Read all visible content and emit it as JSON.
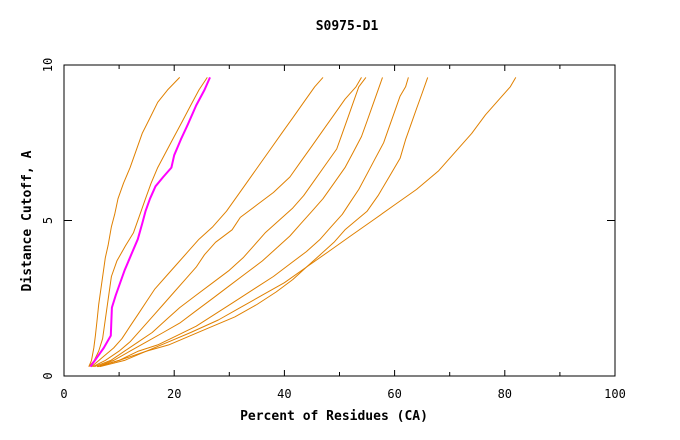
{
  "colors": {
    "background": "#ffffff",
    "axis": "#000000",
    "series_default": "#e08000",
    "series_highlight": "#ff00ff"
  },
  "chart_data": {
    "type": "line",
    "title": "S0975-D1",
    "xlabel": "Percent of Residues (CA)",
    "ylabel": "Distance Cutoff, A",
    "xlim": [
      0,
      100
    ],
    "ylim": [
      0,
      10
    ],
    "xticks": [
      0,
      20,
      40,
      60,
      80,
      100
    ],
    "yticks": [
      0,
      5,
      10
    ],
    "grid": false,
    "series": [
      {
        "highlight": false,
        "points": [
          [
            4.5,
            0.3
          ],
          [
            5.0,
            0.5
          ],
          [
            5.4,
            0.9
          ],
          [
            5.7,
            1.3
          ],
          [
            6.0,
            1.8
          ],
          [
            6.3,
            2.3
          ],
          [
            6.7,
            2.8
          ],
          [
            7.1,
            3.3
          ],
          [
            7.5,
            3.8
          ],
          [
            8.0,
            4.2
          ],
          [
            8.6,
            4.8
          ],
          [
            9.2,
            5.2
          ],
          [
            9.8,
            5.7
          ],
          [
            10.8,
            6.2
          ],
          [
            12.0,
            6.7
          ],
          [
            13.0,
            7.2
          ],
          [
            14.2,
            7.8
          ],
          [
            15.6,
            8.3
          ],
          [
            17.0,
            8.8
          ],
          [
            18.8,
            9.2
          ],
          [
            21.0,
            9.6
          ]
        ]
      },
      {
        "highlight": false,
        "points": [
          [
            4.5,
            0.3
          ],
          [
            5.5,
            0.5
          ],
          [
            6.3,
            0.8
          ],
          [
            7.0,
            1.2
          ],
          [
            7.4,
            1.7
          ],
          [
            7.8,
            2.2
          ],
          [
            8.2,
            2.7
          ],
          [
            8.6,
            3.2
          ],
          [
            9.6,
            3.7
          ],
          [
            11.2,
            4.2
          ],
          [
            12.6,
            4.6
          ],
          [
            13.8,
            5.2
          ],
          [
            14.8,
            5.7
          ],
          [
            15.8,
            6.2
          ],
          [
            17.0,
            6.7
          ],
          [
            18.5,
            7.2
          ],
          [
            20.0,
            7.7
          ],
          [
            21.5,
            8.2
          ],
          [
            23.0,
            8.7
          ],
          [
            24.5,
            9.2
          ],
          [
            26.0,
            9.6
          ]
        ]
      },
      {
        "highlight": true,
        "points": [
          [
            4.8,
            0.3
          ],
          [
            6.0,
            0.6
          ],
          [
            7.2,
            0.9
          ],
          [
            8.5,
            1.3
          ],
          [
            8.6,
            1.8
          ],
          [
            8.7,
            2.2
          ],
          [
            9.4,
            2.6
          ],
          [
            10.2,
            3.0
          ],
          [
            11.0,
            3.4
          ],
          [
            12.2,
            3.9
          ],
          [
            13.4,
            4.4
          ],
          [
            14.2,
            4.9
          ],
          [
            14.8,
            5.3
          ],
          [
            15.6,
            5.7
          ],
          [
            16.6,
            6.1
          ],
          [
            18.0,
            6.4
          ],
          [
            19.5,
            6.7
          ],
          [
            20.0,
            7.1
          ],
          [
            21.2,
            7.6
          ],
          [
            22.5,
            8.1
          ],
          [
            24.0,
            8.7
          ],
          [
            25.5,
            9.2
          ],
          [
            26.5,
            9.6
          ]
        ]
      },
      {
        "highlight": false,
        "points": [
          [
            5.0,
            0.3
          ],
          [
            7.0,
            0.6
          ],
          [
            9.0,
            0.9
          ],
          [
            10.5,
            1.2
          ],
          [
            12.0,
            1.6
          ],
          [
            13.5,
            2.0
          ],
          [
            15.0,
            2.4
          ],
          [
            16.5,
            2.8
          ],
          [
            18.5,
            3.2
          ],
          [
            20.5,
            3.6
          ],
          [
            22.5,
            4.0
          ],
          [
            24.5,
            4.4
          ],
          [
            27.0,
            4.8
          ],
          [
            29.5,
            5.3
          ],
          [
            31.5,
            5.8
          ],
          [
            33.5,
            6.3
          ],
          [
            35.5,
            6.8
          ],
          [
            37.5,
            7.3
          ],
          [
            39.5,
            7.8
          ],
          [
            41.5,
            8.3
          ],
          [
            43.5,
            8.8
          ],
          [
            45.5,
            9.3
          ],
          [
            47.0,
            9.6
          ]
        ]
      },
      {
        "highlight": false,
        "points": [
          [
            5.2,
            0.3
          ],
          [
            7.5,
            0.5
          ],
          [
            10.0,
            0.8
          ],
          [
            12.0,
            1.1
          ],
          [
            14.0,
            1.5
          ],
          [
            16.0,
            1.9
          ],
          [
            18.0,
            2.3
          ],
          [
            20.0,
            2.7
          ],
          [
            22.0,
            3.1
          ],
          [
            24.0,
            3.5
          ],
          [
            25.5,
            3.9
          ],
          [
            27.5,
            4.3
          ],
          [
            30.5,
            4.7
          ],
          [
            32.0,
            5.1
          ],
          [
            35.0,
            5.5
          ],
          [
            38.0,
            5.9
          ],
          [
            41.0,
            6.4
          ],
          [
            43.0,
            6.9
          ],
          [
            45.0,
            7.4
          ],
          [
            47.0,
            7.9
          ],
          [
            49.0,
            8.4
          ],
          [
            51.0,
            8.9
          ],
          [
            53.0,
            9.3
          ],
          [
            54.0,
            9.6
          ]
        ]
      },
      {
        "highlight": false,
        "points": [
          [
            5.5,
            0.3
          ],
          [
            8.5,
            0.5
          ],
          [
            11.0,
            0.8
          ],
          [
            13.5,
            1.1
          ],
          [
            16.0,
            1.4
          ],
          [
            18.5,
            1.8
          ],
          [
            21.0,
            2.2
          ],
          [
            24.0,
            2.6
          ],
          [
            27.0,
            3.0
          ],
          [
            30.0,
            3.4
          ],
          [
            32.5,
            3.8
          ],
          [
            34.5,
            4.2
          ],
          [
            36.5,
            4.6
          ],
          [
            39.0,
            5.0
          ],
          [
            41.5,
            5.4
          ],
          [
            43.5,
            5.8
          ],
          [
            45.5,
            6.3
          ],
          [
            47.5,
            6.8
          ],
          [
            49.5,
            7.3
          ],
          [
            50.5,
            7.8
          ],
          [
            51.5,
            8.3
          ],
          [
            52.5,
            8.8
          ],
          [
            53.5,
            9.3
          ],
          [
            54.8,
            9.6
          ]
        ]
      },
      {
        "highlight": false,
        "points": [
          [
            6.0,
            0.3
          ],
          [
            9.0,
            0.5
          ],
          [
            12.0,
            0.8
          ],
          [
            15.0,
            1.1
          ],
          [
            18.0,
            1.4
          ],
          [
            21.0,
            1.7
          ],
          [
            24.0,
            2.1
          ],
          [
            27.0,
            2.5
          ],
          [
            30.0,
            2.9
          ],
          [
            33.0,
            3.3
          ],
          [
            36.0,
            3.7
          ],
          [
            38.5,
            4.1
          ],
          [
            41.0,
            4.5
          ],
          [
            43.0,
            4.9
          ],
          [
            45.0,
            5.3
          ],
          [
            47.0,
            5.7
          ],
          [
            49.0,
            6.2
          ],
          [
            51.0,
            6.7
          ],
          [
            52.5,
            7.2
          ],
          [
            54.0,
            7.7
          ],
          [
            55.0,
            8.2
          ],
          [
            56.0,
            8.7
          ],
          [
            57.0,
            9.2
          ],
          [
            57.8,
            9.6
          ]
        ]
      },
      {
        "highlight": false,
        "points": [
          [
            6.2,
            0.3
          ],
          [
            10.0,
            0.5
          ],
          [
            13.5,
            0.8
          ],
          [
            17.0,
            1.0
          ],
          [
            20.5,
            1.3
          ],
          [
            24.0,
            1.6
          ],
          [
            27.5,
            2.0
          ],
          [
            31.0,
            2.4
          ],
          [
            34.5,
            2.8
          ],
          [
            38.0,
            3.2
          ],
          [
            41.0,
            3.6
          ],
          [
            44.0,
            4.0
          ],
          [
            46.5,
            4.4
          ],
          [
            48.5,
            4.8
          ],
          [
            50.5,
            5.2
          ],
          [
            52.0,
            5.6
          ],
          [
            53.5,
            6.0
          ],
          [
            55.0,
            6.5
          ],
          [
            56.5,
            7.0
          ],
          [
            58.0,
            7.5
          ],
          [
            59.0,
            8.0
          ],
          [
            60.0,
            8.5
          ],
          [
            61.0,
            9.0
          ],
          [
            62.0,
            9.3
          ],
          [
            62.5,
            9.6
          ]
        ]
      },
      {
        "highlight": false,
        "points": [
          [
            6.5,
            0.3
          ],
          [
            11.0,
            0.5
          ],
          [
            15.0,
            0.8
          ],
          [
            19.0,
            1.0
          ],
          [
            23.0,
            1.3
          ],
          [
            27.0,
            1.6
          ],
          [
            31.0,
            1.9
          ],
          [
            35.0,
            2.3
          ],
          [
            38.5,
            2.7
          ],
          [
            41.5,
            3.1
          ],
          [
            44.0,
            3.5
          ],
          [
            46.5,
            3.9
          ],
          [
            49.0,
            4.3
          ],
          [
            51.0,
            4.7
          ],
          [
            53.0,
            5.0
          ],
          [
            55.0,
            5.3
          ],
          [
            57.0,
            5.8
          ],
          [
            59.0,
            6.4
          ],
          [
            61.0,
            7.0
          ],
          [
            62.0,
            7.6
          ],
          [
            63.0,
            8.1
          ],
          [
            64.0,
            8.6
          ],
          [
            65.0,
            9.1
          ],
          [
            66.0,
            9.6
          ]
        ]
      },
      {
        "highlight": false,
        "points": [
          [
            6.0,
            0.3
          ],
          [
            10.0,
            0.5
          ],
          [
            15.0,
            0.8
          ],
          [
            19.0,
            1.1
          ],
          [
            23.0,
            1.4
          ],
          [
            28.0,
            1.8
          ],
          [
            32.0,
            2.2
          ],
          [
            36.0,
            2.6
          ],
          [
            40.0,
            3.0
          ],
          [
            44.0,
            3.5
          ],
          [
            48.0,
            4.0
          ],
          [
            52.0,
            4.5
          ],
          [
            56.0,
            5.0
          ],
          [
            60.0,
            5.5
          ],
          [
            64.0,
            6.0
          ],
          [
            68.0,
            6.6
          ],
          [
            71.0,
            7.2
          ],
          [
            74.0,
            7.8
          ],
          [
            76.5,
            8.4
          ],
          [
            79.0,
            8.9
          ],
          [
            81.0,
            9.3
          ],
          [
            82.0,
            9.6
          ]
        ]
      }
    ]
  }
}
